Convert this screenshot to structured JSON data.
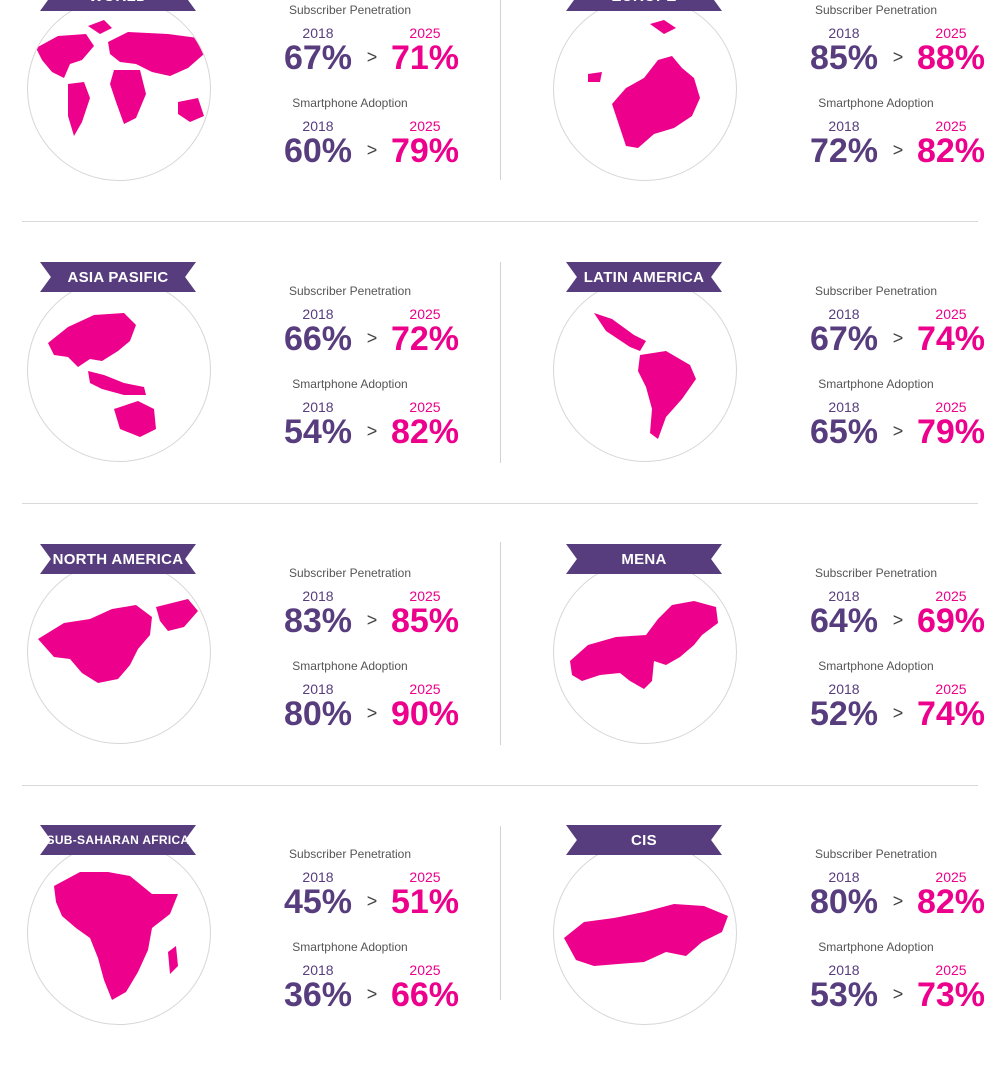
{
  "labels": {
    "metric_a": "Subscriber Penetration",
    "metric_b": "Smartphone Adoption",
    "separator": ">"
  },
  "colors": {
    "banner": "#573d7d",
    "accent": "#ec008c",
    "value_2018": "#573d7d"
  },
  "regions": [
    {
      "name": "WORLD",
      "icon": "world-map-icon",
      "sub": {
        "year_from": "2018",
        "value_from": "67%",
        "year_to": "2025",
        "value_to": "71%"
      },
      "smart": {
        "year_from": "2018",
        "value_from": "60%",
        "year_to": "2025",
        "value_to": "79%"
      }
    },
    {
      "name": "EUROPE",
      "icon": "europe-map-icon",
      "sub": {
        "year_from": "2018",
        "value_from": "85%",
        "year_to": "2025",
        "value_to": "88%"
      },
      "smart": {
        "year_from": "2018",
        "value_from": "72%",
        "year_to": "2025",
        "value_to": "82%"
      }
    },
    {
      "name": "ASIA PASIFIC",
      "icon": "asia-pacific-map-icon",
      "sub": {
        "year_from": "2018",
        "value_from": "66%",
        "year_to": "2025",
        "value_to": "72%"
      },
      "smart": {
        "year_from": "2018",
        "value_from": "54%",
        "year_to": "2025",
        "value_to": "82%"
      }
    },
    {
      "name": "LATIN AMERICA",
      "icon": "latin-america-map-icon",
      "sub": {
        "year_from": "2018",
        "value_from": "67%",
        "year_to": "2025",
        "value_to": "74%"
      },
      "smart": {
        "year_from": "2018",
        "value_from": "65%",
        "year_to": "2025",
        "value_to": "79%"
      }
    },
    {
      "name": "NORTH AMERICA",
      "icon": "north-america-map-icon",
      "sub": {
        "year_from": "2018",
        "value_from": "83%",
        "year_to": "2025",
        "value_to": "85%"
      },
      "smart": {
        "year_from": "2018",
        "value_from": "80%",
        "year_to": "2025",
        "value_to": "90%"
      }
    },
    {
      "name": "MENA",
      "icon": "mena-map-icon",
      "sub": {
        "year_from": "2018",
        "value_from": "64%",
        "year_to": "2025",
        "value_to": "69%"
      },
      "smart": {
        "year_from": "2018",
        "value_from": "52%",
        "year_to": "2025",
        "value_to": "74%"
      }
    },
    {
      "name": "SUB-SAHARAN AFRICA",
      "icon": "sub-saharan-africa-map-icon",
      "sub": {
        "year_from": "2018",
        "value_from": "45%",
        "year_to": "2025",
        "value_to": "51%"
      },
      "smart": {
        "year_from": "2018",
        "value_from": "36%",
        "year_to": "2025",
        "value_to": "66%"
      }
    },
    {
      "name": "CIS",
      "icon": "cis-map-icon",
      "sub": {
        "year_from": "2018",
        "value_from": "80%",
        "year_to": "2025",
        "value_to": "82%"
      },
      "smart": {
        "year_from": "2018",
        "value_from": "53%",
        "year_to": "2025",
        "value_to": "73%"
      }
    }
  ]
}
